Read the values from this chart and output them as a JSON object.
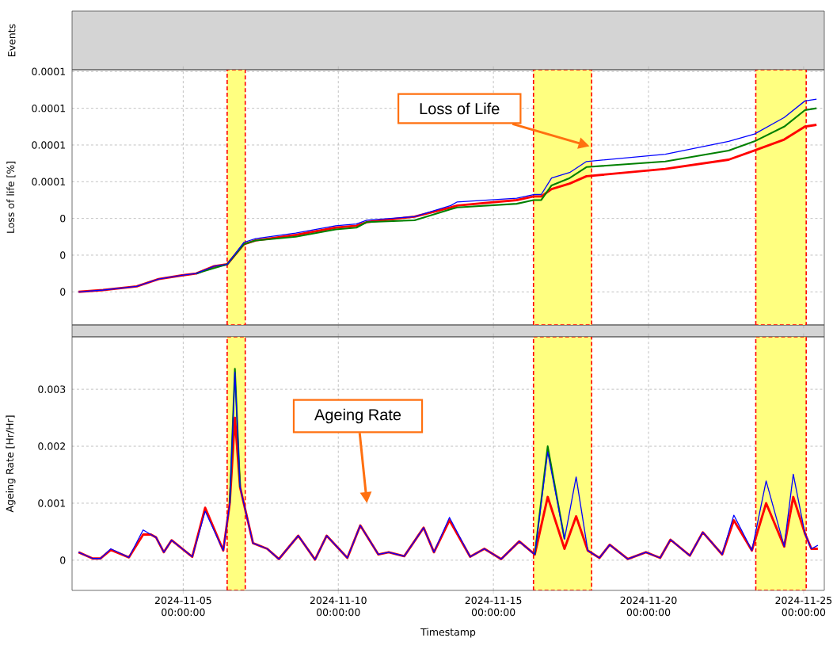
{
  "chart_data": [
    {
      "type": "other",
      "ylabel": "Events"
    },
    {
      "type": "line",
      "ylabel": "Loss of life [%]",
      "xlim": [
        "2024-11-01T10:00",
        "2024-11-25T16:00"
      ],
      "ylim": [
        -1.8e-05,
        0.000121
      ],
      "xticks": [
        {
          "value": "2024-11-05T00:00",
          "label": null
        },
        {
          "value": "2024-11-10T00:00",
          "label": null
        },
        {
          "value": "2024-11-15T00:00",
          "label": null
        },
        {
          "value": "2024-11-20T00:00",
          "label": null
        },
        {
          "value": "2024-11-25T00:00",
          "label": null
        }
      ],
      "yticks": [
        {
          "value": 0,
          "label": "0"
        },
        {
          "value": 2e-05,
          "label": "0"
        },
        {
          "value": 4e-05,
          "label": "0"
        },
        {
          "value": 6e-05,
          "label": "0.0001"
        },
        {
          "value": 8e-05,
          "label": "0.0001"
        },
        {
          "value": 0.0001,
          "label": "0.0001"
        },
        {
          "value": 0.00012,
          "label": "0.0001"
        }
      ],
      "grid": true,
      "tick_labels": "y",
      "x": [
        "2024-11-01T15:00",
        "2024-11-02T10:00",
        "2024-11-03T12:00",
        "2024-11-04T05:00",
        "2024-11-04T23:00",
        "2024-11-05T10:00",
        "2024-11-06T00:00",
        "2024-11-06T10:00",
        "2024-11-06T23:00",
        "2024-11-07T08:00",
        "2024-11-08T15:00",
        "2024-11-09T22:00",
        "2024-11-10T14:00",
        "2024-11-10T22:00",
        "2024-11-12T11:00",
        "2024-11-13T15:00",
        "2024-11-13T20:00",
        "2024-11-15T18:00",
        "2024-11-16T07:00",
        "2024-11-16T13:00",
        "2024-11-16T21:00",
        "2024-11-17T11:00",
        "2024-11-18T00:00",
        "2024-11-20T13:00",
        "2024-11-22T14:00",
        "2024-11-23T10:00",
        "2024-11-24T09:00",
        "2024-11-25T01:00",
        "2024-11-25T10:00"
      ],
      "series": [
        {
          "color": "#0000ff",
          "values": [
            0,
            1e-06,
            3e-06,
            7e-06,
            9e-06,
            1e-05,
            1.4e-05,
            1.5e-05,
            2.7e-05,
            2.9e-05,
            3.2e-05,
            3.6e-05,
            3.7e-05,
            3.9e-05,
            4.1e-05,
            4.7e-05,
            4.9e-05,
            5.1e-05,
            5.3e-05,
            5.3e-05,
            6.2e-05,
            6.5e-05,
            7.1e-05,
            7.5e-05,
            8.2e-05,
            8.6e-05,
            9.5e-05,
            0.000104,
            0.000105
          ]
        },
        {
          "color": "#008000",
          "values": [
            null,
            null,
            null,
            null,
            null,
            1e-05,
            1.3e-05,
            1.5e-05,
            2.6e-05,
            2.8e-05,
            3e-05,
            3.4e-05,
            3.5e-05,
            3.8e-05,
            3.9e-05,
            4.5e-05,
            4.6e-05,
            4.8e-05,
            5e-05,
            5e-05,
            5.8e-05,
            6.2e-05,
            6.8e-05,
            7.1e-05,
            7.7e-05,
            8.2e-05,
            9e-05,
            9.9e-05,
            0.0001
          ]
        },
        {
          "color": "#ff0000",
          "values": [
            0,
            1e-06,
            3e-06,
            7e-06,
            9e-06,
            1e-05,
            1.4e-05,
            1.5e-05,
            2.6e-05,
            2.8e-05,
            3.1e-05,
            3.5e-05,
            3.6e-05,
            3.8e-05,
            4.1e-05,
            4.6e-05,
            4.7e-05,
            5e-05,
            5.2e-05,
            5.2e-05,
            5.6e-05,
            5.9e-05,
            6.3e-05,
            6.7e-05,
            7.2e-05,
            7.7e-05,
            8.3e-05,
            9e-05,
            9.1e-05
          ]
        }
      ],
      "bands": [
        {
          "axis": "x",
          "from": "2024-11-06T10:00",
          "to": "2024-11-07T00:00",
          "color": "#ffff80"
        },
        {
          "axis": "x",
          "from": "2024-11-16T07:00",
          "to": "2024-11-18T04:00",
          "color": "#ffff80"
        },
        {
          "axis": "x",
          "from": "2024-11-23T11:00",
          "to": "2024-11-25T02:00",
          "color": "#ffff80"
        }
      ],
      "annotations": [
        "Loss of Life"
      ]
    },
    {
      "type": "line",
      "ylabel": "Ageing Rate [Hr/Hr]",
      "xlabel": "Timestamp",
      "xlim": [
        "2024-11-01T10:00",
        "2024-11-25T16:00"
      ],
      "ylim": [
        -0.00053,
        0.00392
      ],
      "xticks": [
        {
          "value": "2024-11-05T00:00",
          "label": "2024-11-05 00:00:00"
        },
        {
          "value": "2024-11-10T00:00",
          "label": "2024-11-10 00:00:00"
        },
        {
          "value": "2024-11-15T00:00",
          "label": "2024-11-15 00:00:00"
        },
        {
          "value": "2024-11-20T00:00",
          "label": "2024-11-20 00:00:00"
        },
        {
          "value": "2024-11-25T00:00",
          "label": "2024-11-25 00:00:00"
        }
      ],
      "yticks": [
        0,
        0.001,
        0.002,
        0.003
      ],
      "grid": true,
      "x": [
        "2024-11-01T15:00",
        "2024-11-02T02:00",
        "2024-11-02T08:00",
        "2024-11-02T16:00",
        "2024-11-03T06:00",
        "2024-11-03T17:00",
        "2024-11-03T23:00",
        "2024-11-04T03:00",
        "2024-11-04T09:00",
        "2024-11-04T15:00",
        "2024-11-05T07:00",
        "2024-11-05T17:00",
        "2024-11-06T07:00",
        "2024-11-06T12:00",
        "2024-11-06T16:00",
        "2024-11-06T20:00",
        "2024-11-07T06:00",
        "2024-11-07T17:00",
        "2024-11-08T02:00",
        "2024-11-08T17:00",
        "2024-11-09T06:00",
        "2024-11-09T15:00",
        "2024-11-10T07:00",
        "2024-11-10T17:00",
        "2024-11-11T07:00",
        "2024-11-11T15:00",
        "2024-11-12T03:00",
        "2024-11-12T18:00",
        "2024-11-13T02:00",
        "2024-11-13T14:00",
        "2024-11-14T06:00",
        "2024-11-14T17:00",
        "2024-11-15T06:00",
        "2024-11-15T20:00",
        "2024-11-16T08:00",
        "2024-11-16T18:00",
        "2024-11-17T07:00",
        "2024-11-17T16:00",
        "2024-11-18T01:00",
        "2024-11-18T10:00",
        "2024-11-18T18:00",
        "2024-11-19T08:00",
        "2024-11-19T22:00",
        "2024-11-20T09:00",
        "2024-11-20T17:00",
        "2024-11-21T08:00",
        "2024-11-21T18:00",
        "2024-11-22T09:00",
        "2024-11-22T18:00",
        "2024-11-23T08:00",
        "2024-11-23T19:00",
        "2024-11-24T09:00",
        "2024-11-24T16:00",
        "2024-11-25T01:00",
        "2024-11-25T06:00",
        "2024-11-25T11:00"
      ],
      "series": [
        {
          "color": "#0000ff",
          "values": [
            0.00014,
            3e-05,
            3e-05,
            0.0002,
            5e-05,
            0.00053,
            0.00045,
            0.0004,
            0.00014,
            0.00035,
            6e-05,
            0.00086,
            0.00017,
            0.001,
            0.0033,
            0.00128,
            0.0003,
            0.0002,
            2e-05,
            0.00043,
            1e-05,
            0.00043,
            4e-05,
            0.00061,
            0.0001,
            0.00014,
            7e-05,
            0.00057,
            0.00014,
            0.00075,
            6e-05,
            0.0002,
            2e-05,
            0.00033,
            0.0001,
            0.0019,
            0.00037,
            0.00146,
            0.00017,
            4e-05,
            0.00027,
            2e-05,
            0.00014,
            4e-05,
            0.00036,
            8e-05,
            0.00049,
            0.0001,
            0.00079,
            0.00017,
            0.00139,
            0.00024,
            0.00151,
            0.00047,
            0.0002,
            0.00026
          ]
        },
        {
          "color": "#008000",
          "values": [
            null,
            null,
            null,
            null,
            null,
            null,
            null,
            null,
            null,
            null,
            null,
            null,
            null,
            0.001,
            0.00336,
            0.00128,
            null,
            null,
            null,
            null,
            null,
            null,
            null,
            null,
            null,
            null,
            null,
            null,
            null,
            null,
            null,
            null,
            null,
            null,
            0.0001,
            0.002,
            0.00037,
            null,
            null,
            null,
            null,
            null,
            null,
            null,
            null,
            null,
            null,
            null,
            null,
            null,
            null,
            null,
            null,
            null,
            null,
            null
          ]
        },
        {
          "color": "#ff0000",
          "values": [
            0.00014,
            3e-05,
            3e-05,
            0.00018,
            5e-05,
            0.00045,
            0.00045,
            0.0004,
            0.00014,
            0.00035,
            6e-05,
            0.00092,
            0.00017,
            0.001,
            0.0025,
            0.00128,
            0.0003,
            0.0002,
            2e-05,
            0.00043,
            1e-05,
            0.00043,
            4e-05,
            0.00061,
            0.0001,
            0.00014,
            7e-05,
            0.00057,
            0.00014,
            0.0007,
            6e-05,
            0.0002,
            2e-05,
            0.00033,
            0.0001,
            0.00111,
            0.0002,
            0.00077,
            0.00017,
            4e-05,
            0.00027,
            2e-05,
            0.00014,
            4e-05,
            0.00036,
            8e-05,
            0.00049,
            0.0001,
            0.0007,
            0.00017,
            0.001,
            0.00024,
            0.00111,
            0.00047,
            0.0002,
            0.0002
          ]
        }
      ],
      "bands": [
        {
          "axis": "x",
          "from": "2024-11-06T10:00",
          "to": "2024-11-07T00:00",
          "color": "#ffff80"
        },
        {
          "axis": "x",
          "from": "2024-11-16T07:00",
          "to": "2024-11-18T04:00",
          "color": "#ffff80"
        },
        {
          "axis": "x",
          "from": "2024-11-23T11:00",
          "to": "2024-11-25T02:00",
          "color": "#ffff80"
        }
      ],
      "annotations": [
        "Ageing Rate"
      ]
    }
  ]
}
